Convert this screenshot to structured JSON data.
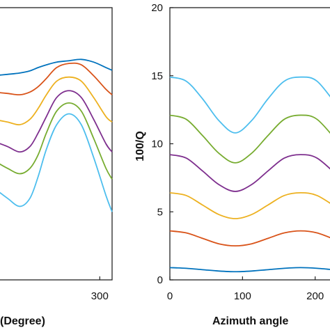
{
  "chart_data": [
    {
      "type": "line",
      "xlabel": "(Degree)",
      "ylabel": "",
      "xticks": [
        300
      ],
      "xlim": [
        -220,
        360
      ],
      "grid": false,
      "series": [
        {
          "color": "#0072BD",
          "x": [
            -220,
            -150,
            -90,
            -40,
            0,
            40,
            90,
            150,
            210,
            270,
            330,
            360
          ],
          "y": [
            7.5,
            7.55,
            7.6,
            7.68,
            7.8,
            7.9,
            8.0,
            8.05,
            8.1,
            8.0,
            7.8,
            7.7
          ]
        },
        {
          "color": "#D95319",
          "x": [
            -220,
            -150,
            -90,
            -40,
            0,
            40,
            90,
            150,
            210,
            270,
            330,
            360
          ],
          "y": [
            6.9,
            6.85,
            6.8,
            6.9,
            7.1,
            7.4,
            7.8,
            7.95,
            7.9,
            7.5,
            7.0,
            6.8
          ]
        },
        {
          "color": "#EDB120",
          "x": [
            -220,
            -150,
            -90,
            -40,
            0,
            40,
            90,
            150,
            210,
            270,
            330,
            360
          ],
          "y": [
            5.9,
            5.8,
            5.7,
            5.9,
            6.3,
            6.8,
            7.3,
            7.45,
            7.3,
            6.7,
            6.0,
            5.8
          ]
        },
        {
          "color": "#7E2F8E",
          "x": [
            -220,
            -150,
            -90,
            -40,
            0,
            40,
            90,
            150,
            210,
            270,
            330,
            360
          ],
          "y": [
            5.1,
            4.9,
            4.7,
            4.9,
            5.4,
            6.0,
            6.7,
            6.95,
            6.7,
            5.9,
            5.0,
            4.7
          ]
        },
        {
          "color": "#77AC30",
          "x": [
            -220,
            -150,
            -90,
            -40,
            0,
            40,
            90,
            150,
            210,
            270,
            330,
            360
          ],
          "y": [
            4.4,
            4.1,
            3.9,
            4.1,
            4.6,
            5.4,
            6.2,
            6.5,
            6.2,
            5.2,
            4.1,
            3.7
          ]
        },
        {
          "color": "#4DBEEE",
          "x": [
            -220,
            -150,
            -90,
            -40,
            0,
            40,
            90,
            150,
            210,
            270,
            330,
            360
          ],
          "y": [
            3.4,
            3.0,
            2.7,
            3.0,
            3.8,
            4.8,
            5.7,
            6.1,
            5.7,
            4.5,
            3.1,
            2.5
          ]
        }
      ]
    },
    {
      "type": "line",
      "xlabel": "Azimuth angle",
      "ylabel": "100/Q",
      "xticks": [
        0,
        100,
        200
      ],
      "yticks": [
        0,
        5,
        10,
        15,
        20
      ],
      "xlim": [
        0,
        230
      ],
      "ylim": [
        0,
        20
      ],
      "grid": false,
      "series": [
        {
          "color": "#0072BD",
          "x": [
            0,
            22.5,
            45,
            67.5,
            90,
            112.5,
            135,
            157.5,
            180,
            202.5,
            230
          ],
          "y": [
            0.9,
            0.85,
            0.75,
            0.65,
            0.6,
            0.65,
            0.75,
            0.85,
            0.9,
            0.85,
            0.72
          ]
        },
        {
          "color": "#D95319",
          "x": [
            0,
            22.5,
            45,
            67.5,
            90,
            112.5,
            135,
            157.5,
            180,
            202.5,
            230
          ],
          "y": [
            3.6,
            3.45,
            3.05,
            2.65,
            2.5,
            2.65,
            3.05,
            3.45,
            3.6,
            3.45,
            2.9
          ]
        },
        {
          "color": "#EDB120",
          "x": [
            0,
            22.5,
            45,
            67.5,
            90,
            112.5,
            135,
            157.5,
            180,
            202.5,
            230
          ],
          "y": [
            6.4,
            6.2,
            5.5,
            4.8,
            4.5,
            4.8,
            5.5,
            6.2,
            6.4,
            6.2,
            5.3
          ]
        },
        {
          "color": "#7E2F8E",
          "x": [
            0,
            22.5,
            45,
            67.5,
            90,
            112.5,
            135,
            157.5,
            180,
            202.5,
            230
          ],
          "y": [
            9.2,
            8.95,
            8.0,
            7.0,
            6.5,
            7.0,
            8.0,
            8.95,
            9.2,
            8.95,
            7.7
          ]
        },
        {
          "color": "#77AC30",
          "x": [
            0,
            22.5,
            45,
            67.5,
            90,
            112.5,
            135,
            157.5,
            180,
            202.5,
            230
          ],
          "y": [
            12.1,
            11.8,
            10.6,
            9.3,
            8.6,
            9.3,
            10.6,
            11.8,
            12.1,
            11.8,
            10.2
          ]
        },
        {
          "color": "#4DBEEE",
          "x": [
            0,
            22.5,
            45,
            67.5,
            90,
            112.5,
            135,
            157.5,
            180,
            202.5,
            230
          ],
          "y": [
            14.9,
            14.6,
            13.3,
            11.7,
            10.8,
            11.7,
            13.3,
            14.6,
            14.9,
            14.6,
            12.8
          ]
        }
      ]
    }
  ]
}
